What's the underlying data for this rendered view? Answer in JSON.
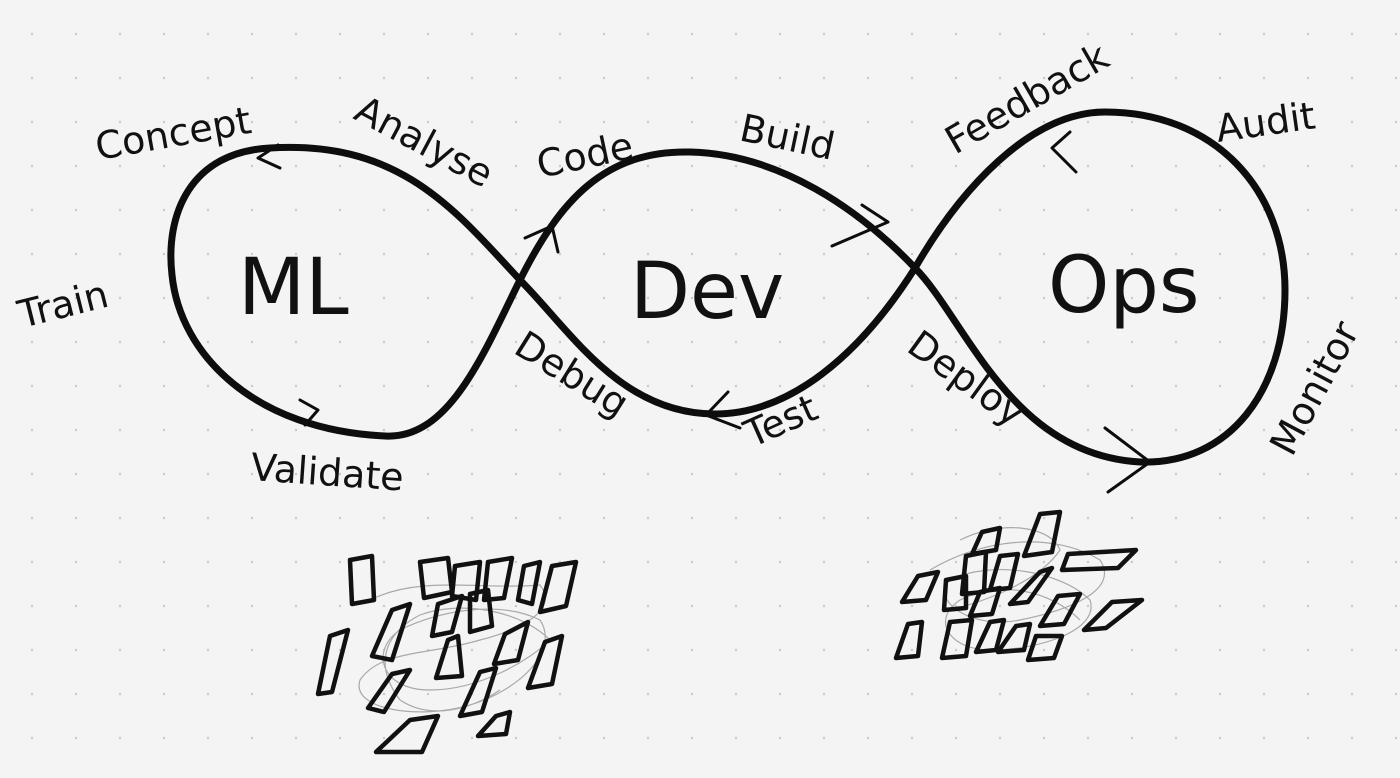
{
  "loops": {
    "ml": "ML",
    "dev": "Dev",
    "ops": "Ops"
  },
  "stages": {
    "concept": "Concept",
    "analyse": "Analyse",
    "train": "Train",
    "validate": "Validate",
    "debug": "Debug",
    "code": "Code",
    "build": "Build",
    "test": "Test",
    "deploy": "Deploy",
    "feedback": "Feedback",
    "audit": "Audit",
    "monitor": "Monitor"
  }
}
